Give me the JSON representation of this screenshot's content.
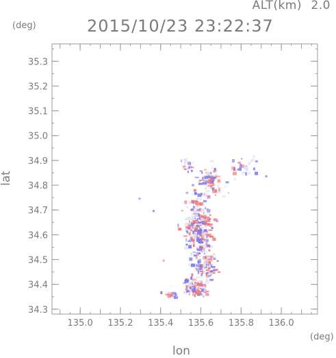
{
  "header": {
    "alt_label": "ALT(km)",
    "alt_value": "2.0",
    "timestamp": "2015/10/23 23:22:37"
  },
  "chart_data": {
    "type": "heatmap",
    "title": "",
    "xlabel": "lon",
    "ylabel": "lat",
    "x_unit": "(deg)",
    "y_unit": "(deg)",
    "xlim": [
      134.86,
      136.18
    ],
    "ylim": [
      34.28,
      35.37
    ],
    "xticks": [
      135.0,
      135.2,
      135.4,
      135.6,
      135.8,
      136.0
    ],
    "xtick_labels": [
      "135.0",
      "135.2",
      "135.4",
      "135.6",
      "135.8",
      "136.0"
    ],
    "yticks": [
      34.3,
      34.4,
      34.5,
      34.6,
      34.7,
      34.8,
      34.9,
      35.0,
      35.1,
      35.2,
      35.3
    ],
    "ytick_labels": [
      "34.3",
      "34.4",
      "34.5",
      "34.6",
      "34.7",
      "34.8",
      "34.9",
      "35.0",
      "35.1",
      "35.2",
      "35.3"
    ],
    "grid": false,
    "colors": {
      "positive": "#f07a7a",
      "negative": "#7a7af0",
      "neutral": "#e2e2f0"
    },
    "clusters": [
      {
        "lon": 135.58,
        "lat": 34.63,
        "sx": 0.055,
        "sy": 0.08,
        "n": 260
      },
      {
        "lon": 135.62,
        "lat": 34.48,
        "sx": 0.04,
        "sy": 0.04,
        "n": 110
      },
      {
        "lon": 135.57,
        "lat": 34.39,
        "sx": 0.05,
        "sy": 0.03,
        "n": 90
      },
      {
        "lon": 135.64,
        "lat": 34.82,
        "sx": 0.06,
        "sy": 0.04,
        "n": 90
      },
      {
        "lon": 135.53,
        "lat": 34.88,
        "sx": 0.02,
        "sy": 0.02,
        "n": 22
      },
      {
        "lon": 135.82,
        "lat": 34.88,
        "sx": 0.05,
        "sy": 0.03,
        "n": 24
      },
      {
        "lon": 135.45,
        "lat": 34.36,
        "sx": 0.03,
        "sy": 0.01,
        "n": 18
      }
    ],
    "isolated": [
      {
        "lon": 135.29,
        "lat": 34.75,
        "sign": "negative"
      },
      {
        "lon": 135.41,
        "lat": 34.5,
        "sign": "positive"
      },
      {
        "lon": 135.36,
        "lat": 34.7,
        "sign": "negative"
      },
      {
        "lon": 135.92,
        "lat": 34.84,
        "sign": "negative"
      },
      {
        "lon": 135.86,
        "lat": 34.92,
        "sign": "neutral"
      }
    ]
  }
}
